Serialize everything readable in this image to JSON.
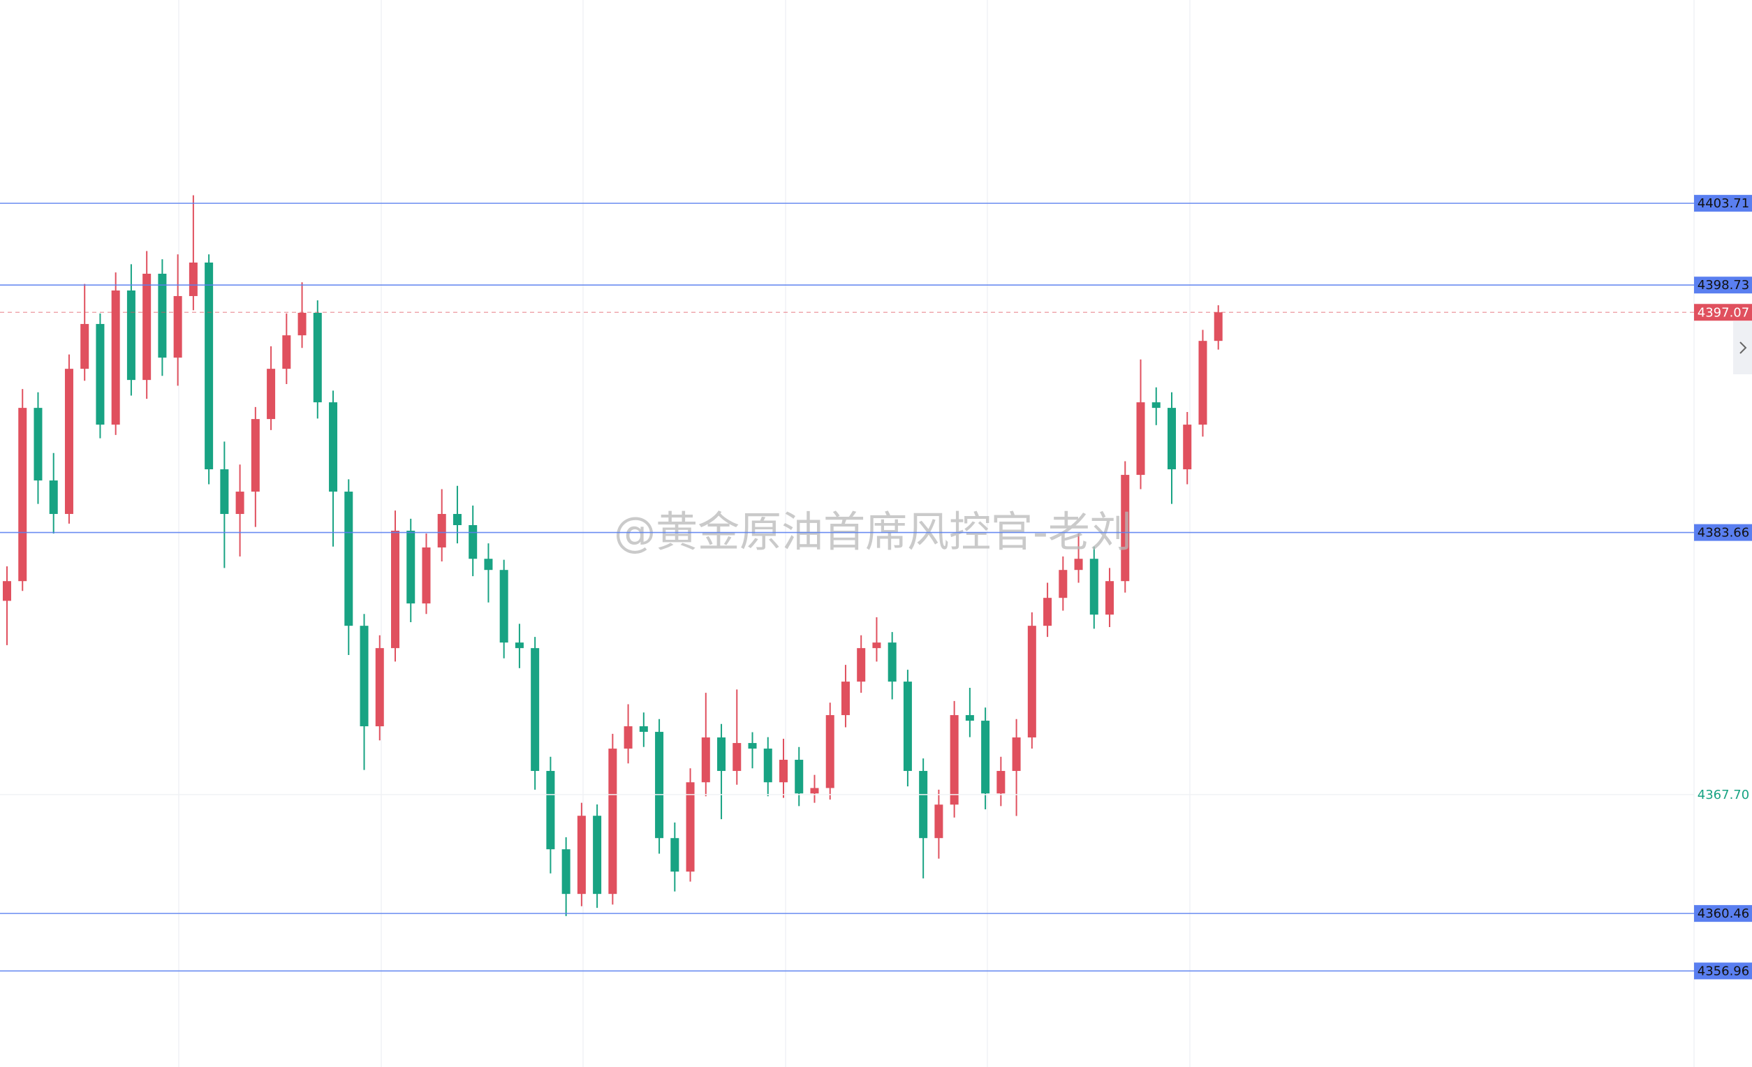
{
  "chart_data": {
    "type": "candlestick",
    "up_color": "#e0505e",
    "down_color": "#18a383",
    "ylim": [
      4351.11,
      4416.09
    ],
    "open": [
      4379.5,
      4380.7,
      4391.25,
      4386.83,
      4384.79,
      4393.63,
      4396.36,
      4390.23,
      4398.4,
      4392.95,
      4399.42,
      4394.31,
      4398.06,
      4400.1,
      4387.51,
      4384.79,
      4386.15,
      4390.57,
      4393.63,
      4395.67,
      4397.04,
      4391.59,
      4386.15,
      4377.98,
      4371.86,
      4376.62,
      4383.77,
      4379.34,
      4382.75,
      4384.79,
      4384.11,
      4382.06,
      4381.38,
      4376.96,
      4376.62,
      4369.14,
      4364.37,
      4361.65,
      4366.41,
      4361.65,
      4370.5,
      4371.86,
      4371.52,
      4365.05,
      4363.01,
      4368.45,
      4371.18,
      4369.14,
      4370.84,
      4370.5,
      4368.45,
      4369.82,
      4367.77,
      4368.1,
      4372.54,
      4374.58,
      4376.62,
      4376.96,
      4374.58,
      4369.14,
      4365.05,
      4367.09,
      4372.54,
      4372.2,
      4367.77,
      4369.14,
      4371.18,
      4377.98,
      4379.68,
      4381.38,
      4382.06,
      4378.66,
      4380.7,
      4387.17,
      4391.59,
      4391.25,
      4387.51,
      4390.23,
      4395.33
    ],
    "high": [
      4381.6,
      4392.4,
      4392.2,
      4388.5,
      4394.5,
      4398.8,
      4397.0,
      4399.5,
      4400.0,
      4400.8,
      4400.3,
      4400.6,
      4404.2,
      4400.6,
      4389.2,
      4387.8,
      4391.3,
      4395.0,
      4397.0,
      4398.9,
      4397.8,
      4392.3,
      4386.9,
      4378.7,
      4377.4,
      4385.0,
      4384.5,
      4383.6,
      4386.3,
      4386.5,
      4385.3,
      4383.0,
      4382.0,
      4378.1,
      4377.3,
      4370.0,
      4365.1,
      4367.2,
      4367.1,
      4371.4,
      4373.2,
      4372.7,
      4372.3,
      4366.0,
      4369.3,
      4373.9,
      4372.0,
      4374.1,
      4371.5,
      4371.2,
      4371.1,
      4370.6,
      4368.9,
      4373.3,
      4375.6,
      4377.4,
      4378.5,
      4377.6,
      4375.3,
      4369.9,
      4368.0,
      4373.4,
      4374.2,
      4373.0,
      4370.0,
      4372.3,
      4378.8,
      4380.6,
      4382.2,
      4383.6,
      4382.8,
      4381.5,
      4388.0,
      4394.2,
      4392.5,
      4392.2,
      4391.0,
      4396.0,
      4397.5
    ],
    "low": [
      4376.8,
      4380.1,
      4385.4,
      4383.6,
      4384.2,
      4392.9,
      4389.4,
      4389.6,
      4392.0,
      4391.8,
      4393.2,
      4392.6,
      4397.2,
      4386.6,
      4381.5,
      4382.2,
      4384.0,
      4389.9,
      4392.7,
      4394.9,
      4390.6,
      4382.8,
      4376.2,
      4369.2,
      4371.0,
      4375.8,
      4378.2,
      4378.7,
      4381.9,
      4383.0,
      4381.0,
      4379.4,
      4376.0,
      4375.4,
      4368.0,
      4362.9,
      4360.3,
      4360.9,
      4360.8,
      4361.0,
      4369.6,
      4370.6,
      4364.1,
      4361.8,
      4362.4,
      4367.6,
      4366.2,
      4368.3,
      4369.3,
      4367.6,
      4367.5,
      4367.0,
      4367.2,
      4367.4,
      4371.8,
      4373.9,
      4375.8,
      4373.5,
      4368.2,
      4362.6,
      4363.8,
      4366.3,
      4371.2,
      4366.8,
      4367.0,
      4366.4,
      4370.5,
      4377.3,
      4378.9,
      4380.6,
      4377.8,
      4377.9,
      4380.0,
      4386.3,
      4390.2,
      4385.4,
      4386.6,
      4389.5,
      4394.8
    ],
    "close": [
      4380.7,
      4391.25,
      4386.83,
      4384.79,
      4393.63,
      4396.36,
      4390.23,
      4398.4,
      4392.95,
      4399.42,
      4394.31,
      4398.06,
      4400.1,
      4387.51,
      4384.79,
      4386.15,
      4390.57,
      4393.63,
      4395.67,
      4397.04,
      4391.59,
      4386.15,
      4377.98,
      4371.86,
      4376.62,
      4383.77,
      4379.34,
      4382.75,
      4384.79,
      4384.11,
      4382.06,
      4381.38,
      4376.96,
      4376.62,
      4369.14,
      4364.37,
      4361.65,
      4366.41,
      4361.65,
      4370.5,
      4371.86,
      4371.52,
      4365.05,
      4363.01,
      4368.45,
      4371.18,
      4369.14,
      4370.84,
      4370.5,
      4368.45,
      4369.82,
      4367.77,
      4368.1,
      4372.54,
      4374.58,
      4376.62,
      4376.96,
      4374.58,
      4369.14,
      4365.05,
      4367.09,
      4372.54,
      4372.2,
      4367.77,
      4369.14,
      4371.18,
      4377.98,
      4379.68,
      4381.38,
      4382.06,
      4378.66,
      4380.7,
      4387.17,
      4391.59,
      4391.25,
      4387.51,
      4390.23,
      4395.33,
      4397.07
    ],
    "price_lines": [
      4403.71,
      4398.73,
      4383.66,
      4360.46,
      4356.96
    ],
    "price_line_color": "#5a7ff0",
    "current_price": 4397.07,
    "marker_price": {
      "value": 4367.7,
      "label": "4367.70"
    },
    "marker_color": "#18a383",
    "watermark": "@黄金原油首席风控官-老刘"
  }
}
